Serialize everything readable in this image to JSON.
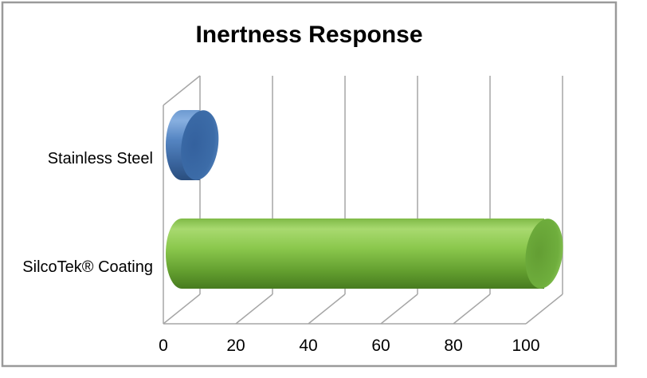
{
  "frame": {
    "border_color": "#9a9a9a",
    "background": "#ffffff"
  },
  "chart_data": {
    "type": "bar",
    "orientation": "horizontal",
    "style": "3d-cylinder",
    "title": "Inertness Response",
    "categories": [
      "Stainless Steel",
      "SilcoTek® Coating"
    ],
    "values": [
      5,
      100
    ],
    "xticks": [
      0,
      20,
      40,
      60,
      80,
      100
    ],
    "xlim": [
      0,
      100
    ],
    "xlabel": "",
    "ylabel": "",
    "grid": true,
    "legend": false,
    "gridline_color": "#a6a6a6",
    "series_styles": [
      {
        "name": "stainless-steel",
        "base": "#4f81bd",
        "body": [
          "#6d9ad0",
          "#87afe0",
          "#5585c2",
          "#3a659e",
          "#2a4e7e"
        ],
        "cap": [
          "#34619e",
          "#3c6ca8",
          "#5584bd"
        ]
      },
      {
        "name": "silcotek-coating",
        "base": "#8cc63f",
        "body": [
          "#7fba47",
          "#a8d96f",
          "#8bc84d",
          "#639f2f",
          "#477b1f"
        ],
        "cap": [
          "#639e33",
          "#6fae3d",
          "#90c95c"
        ]
      }
    ]
  }
}
